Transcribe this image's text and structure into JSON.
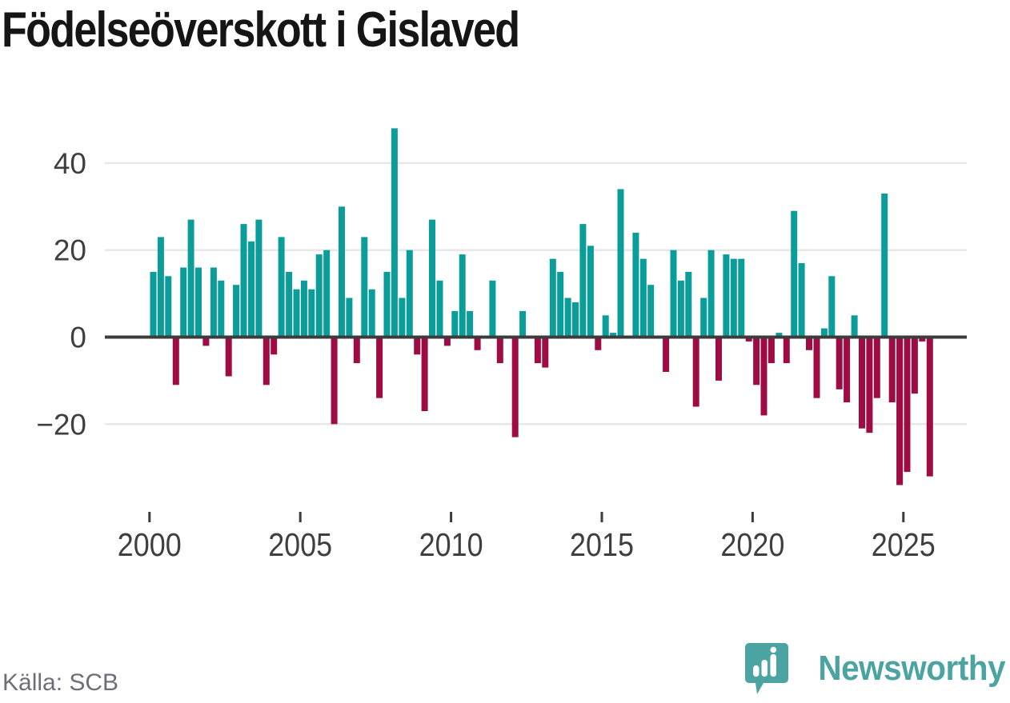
{
  "title": "Födelseöverskott i Gislaved",
  "source": {
    "label": "Källa: SCB"
  },
  "branding": {
    "name": "Newsworthy",
    "color": "#4BA4A1",
    "icon": "speech-bubble-bar-chart-icon"
  },
  "chart_data": {
    "type": "bar",
    "title": "Födelseöverskott i Gislaved",
    "unit_period": "quarter",
    "start": "2000 Q1",
    "end": "2025 Q4",
    "positive_color": "#0A9D9A",
    "negative_color": "#9F0C44",
    "grid": true,
    "ylim": [
      -36,
      50
    ],
    "y_axis": {
      "ticks": [
        40,
        20,
        0,
        -20
      ]
    },
    "x_axis": {
      "ticks": [
        2000,
        2005,
        2010,
        2015,
        2020,
        2025
      ]
    },
    "series_years": [
      {
        "year": 2000,
        "values": [
          15,
          23,
          14,
          -11
        ]
      },
      {
        "year": 2001,
        "values": [
          16,
          27,
          16,
          -2
        ]
      },
      {
        "year": 2002,
        "values": [
          16,
          13,
          -9,
          12
        ]
      },
      {
        "year": 2003,
        "values": [
          26,
          22,
          27,
          -11
        ]
      },
      {
        "year": 2004,
        "values": [
          -4,
          23,
          15,
          11
        ]
      },
      {
        "year": 2005,
        "values": [
          13,
          11,
          19,
          20
        ]
      },
      {
        "year": 2006,
        "values": [
          -20,
          30,
          9,
          -6
        ]
      },
      {
        "year": 2007,
        "values": [
          23,
          11,
          -14,
          15
        ]
      },
      {
        "year": 2008,
        "values": [
          48,
          9,
          20,
          -4
        ]
      },
      {
        "year": 2009,
        "values": [
          -17,
          27,
          13,
          -2
        ]
      },
      {
        "year": 2010,
        "values": [
          6,
          19,
          6,
          -3
        ]
      },
      {
        "year": 2011,
        "values": [
          0,
          13,
          -6,
          0
        ]
      },
      {
        "year": 2012,
        "values": [
          -23,
          6,
          0,
          -6
        ]
      },
      {
        "year": 2013,
        "values": [
          -7,
          18,
          15,
          9
        ]
      },
      {
        "year": 2014,
        "values": [
          8,
          26,
          21,
          -3
        ]
      },
      {
        "year": 2015,
        "values": [
          5,
          1,
          34,
          0
        ]
      },
      {
        "year": 2016,
        "values": [
          24,
          18,
          12,
          0
        ]
      },
      {
        "year": 2017,
        "values": [
          -8,
          20,
          13,
          15
        ]
      },
      {
        "year": 2018,
        "values": [
          -16,
          9,
          20,
          -10
        ]
      },
      {
        "year": 2019,
        "values": [
          19,
          18,
          18,
          -1
        ]
      },
      {
        "year": 2020,
        "values": [
          -11,
          -18,
          -6,
          1
        ]
      },
      {
        "year": 2021,
        "values": [
          -6,
          29,
          17,
          -3
        ]
      },
      {
        "year": 2022,
        "values": [
          -14,
          2,
          14,
          -12
        ]
      },
      {
        "year": 2023,
        "values": [
          -15,
          5,
          -21,
          -22
        ]
      },
      {
        "year": 2024,
        "values": [
          -14,
          33,
          -15,
          -34
        ]
      },
      {
        "year": 2025,
        "values": [
          -31,
          -13,
          -1,
          -32
        ]
      }
    ]
  }
}
